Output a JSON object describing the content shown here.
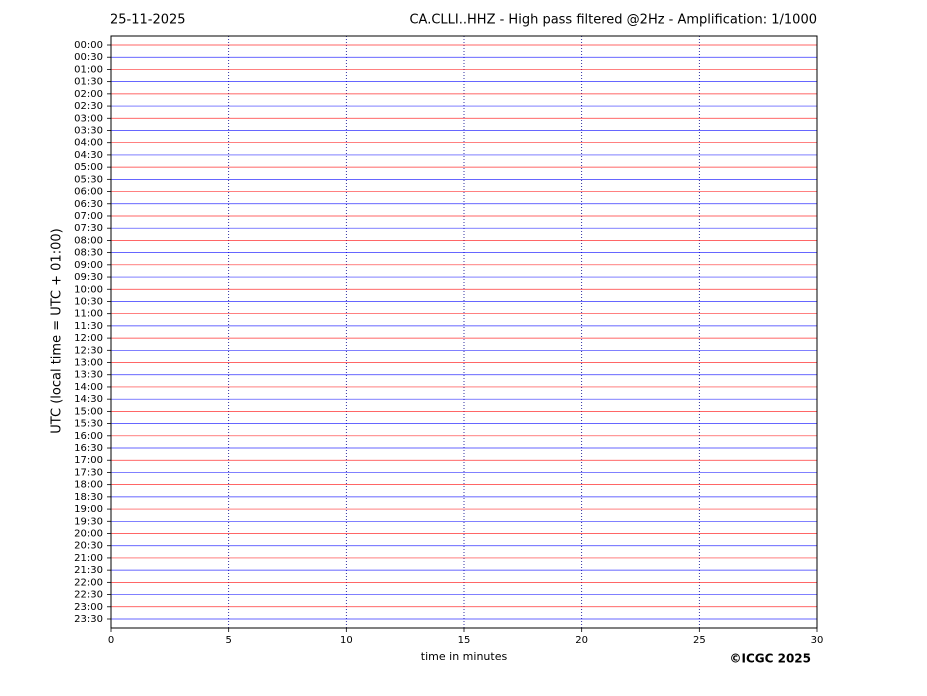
{
  "chart_data": {
    "type": "helicorder",
    "title": "25-11-2025",
    "subtitle": "CA.CLLI..HHZ - High pass filtered @2Hz - Amplification: 1/1000",
    "xlabel": "time in minutes",
    "ylabel": "UTC (local time = UTC + 01:00)",
    "footer": "©ICGC 2025",
    "categories": [
      "00:00",
      "00:30",
      "01:00",
      "01:30",
      "02:00",
      "02:30",
      "03:00",
      "03:30",
      "04:00",
      "04:30",
      "05:00",
      "05:30",
      "06:00",
      "06:30",
      "07:00",
      "07:30",
      "08:00",
      "08:30",
      "09:00",
      "09:30",
      "10:00",
      "10:30",
      "11:00",
      "11:30",
      "12:00",
      "12:30",
      "13:00",
      "13:30",
      "14:00",
      "14:30",
      "15:00",
      "15:30",
      "16:00",
      "16:30",
      "17:00",
      "17:30",
      "18:00",
      "18:30",
      "19:00",
      "19:30",
      "20:00",
      "20:30",
      "21:00",
      "21:30",
      "22:00",
      "22:30",
      "23:00",
      "23:30"
    ],
    "colors": [
      "#ff0000",
      "#0000ff"
    ],
    "xlim": [
      0,
      30
    ],
    "xticks": [
      0,
      5,
      10,
      15,
      20,
      25,
      30
    ],
    "grid": true
  }
}
